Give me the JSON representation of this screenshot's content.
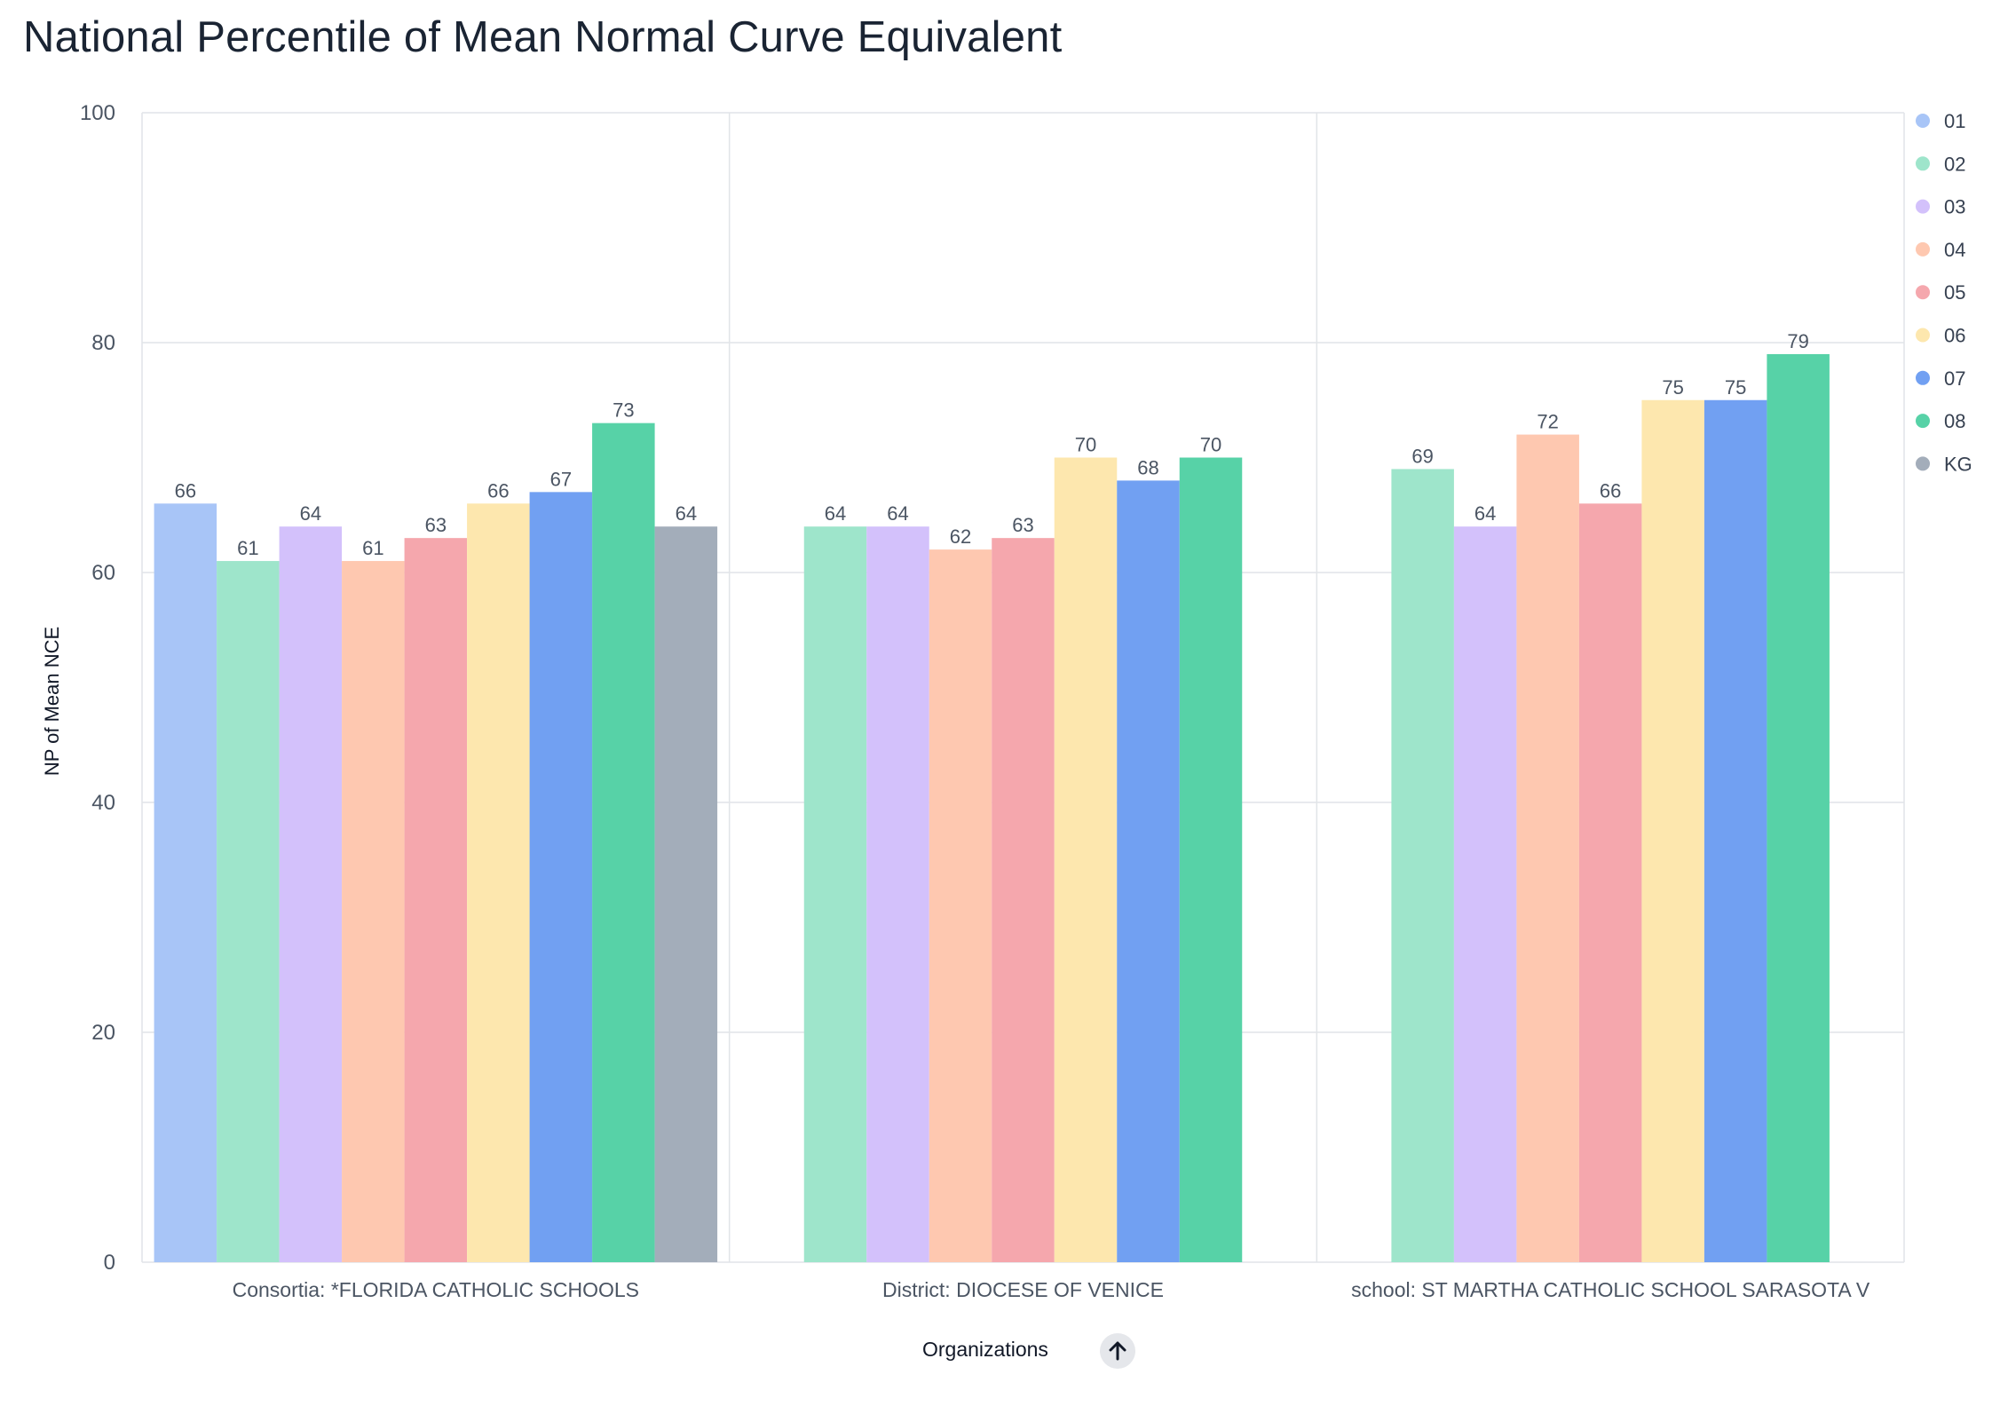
{
  "title": "National Percentile of Mean Normal Curve Equivalent",
  "x_axis_title": "Organizations",
  "icons": {
    "sort": "arrow-up-icon"
  },
  "chart_data": {
    "type": "bar",
    "title": "National Percentile of Mean Normal Curve Equivalent",
    "xlabel": "Organizations",
    "ylabel": "NP of Mean NCE",
    "ylim": [
      0,
      100
    ],
    "yticks": [
      0,
      20,
      40,
      60,
      80,
      100
    ],
    "grid": true,
    "legend_position": "right",
    "categories": [
      "Consortia: *FLORIDA CATHOLIC SCHOOLS",
      "District: DIOCESE OF VENICE",
      "school: ST MARTHA CATHOLIC SCHOOL SARASOTA V"
    ],
    "series": [
      {
        "name": "01",
        "color": "#a8c5f7",
        "values": [
          66,
          null,
          null
        ]
      },
      {
        "name": "02",
        "color": "#9ee5cb",
        "values": [
          61,
          64,
          69
        ]
      },
      {
        "name": "03",
        "color": "#d3c1fb",
        "values": [
          64,
          64,
          64
        ]
      },
      {
        "name": "04",
        "color": "#fec8b0",
        "values": [
          61,
          62,
          72
        ]
      },
      {
        "name": "05",
        "color": "#f5a7ad",
        "values": [
          63,
          63,
          66
        ]
      },
      {
        "name": "06",
        "color": "#fde7ae",
        "values": [
          66,
          70,
          75
        ]
      },
      {
        "name": "07",
        "color": "#71a0f2",
        "values": [
          67,
          68,
          75
        ]
      },
      {
        "name": "08",
        "color": "#57d2a7",
        "values": [
          73,
          70,
          79
        ]
      },
      {
        "name": "KG",
        "color": "#a3adba",
        "values": [
          64,
          null,
          null
        ]
      }
    ]
  }
}
